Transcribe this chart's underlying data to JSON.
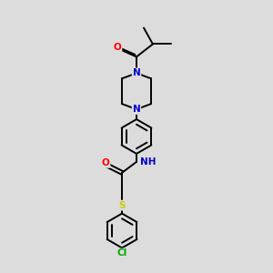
{
  "bg_color": "#e0e0e0",
  "bond_color": "#000000",
  "bond_lw": 1.4,
  "atom_colors": {
    "O": "#ff0000",
    "N": "#0000cc",
    "S": "#cccc00",
    "Cl": "#00aa00",
    "C": "#000000",
    "H": "#008888"
  },
  "font_size": 7.5,
  "fig_bg": "#dcdcdc"
}
